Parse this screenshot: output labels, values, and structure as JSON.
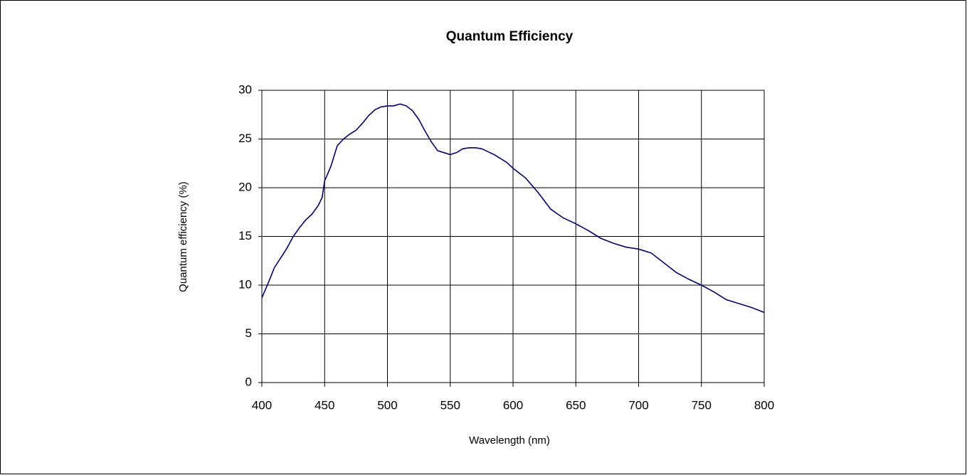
{
  "chart_data": {
    "type": "line",
    "title": "Quantum Efficiency",
    "x_label": "Wavelength (nm)",
    "y_label": "Quantum efficiency (%)",
    "x": [
      400,
      405,
      410,
      415,
      420,
      425,
      430,
      435,
      440,
      445,
      448,
      450,
      455,
      460,
      465,
      470,
      475,
      480,
      485,
      490,
      495,
      500,
      505,
      510,
      515,
      520,
      525,
      530,
      535,
      540,
      545,
      550,
      555,
      560,
      565,
      570,
      575,
      580,
      585,
      590,
      595,
      600,
      610,
      620,
      630,
      640,
      650,
      660,
      670,
      680,
      690,
      700,
      705,
      710,
      720,
      730,
      740,
      750,
      760,
      770,
      780,
      790,
      800
    ],
    "values": [
      8.7,
      10.2,
      11.8,
      12.8,
      13.8,
      15.0,
      15.9,
      16.7,
      17.3,
      18.2,
      19.0,
      20.7,
      22.2,
      24.3,
      25.0,
      25.5,
      25.9,
      26.6,
      27.4,
      28.0,
      28.3,
      28.4,
      28.4,
      28.6,
      28.4,
      27.9,
      27.0,
      25.8,
      24.7,
      23.8,
      23.6,
      23.4,
      23.6,
      24.0,
      24.1,
      24.1,
      24.0,
      23.7,
      23.4,
      23.0,
      22.6,
      22.0,
      21.0,
      19.5,
      17.8,
      16.9,
      16.3,
      15.6,
      14.8,
      14.3,
      13.9,
      13.7,
      13.5,
      13.3,
      12.3,
      11.3,
      10.6,
      10.0,
      9.3,
      8.5,
      8.1,
      7.7,
      7.2
    ],
    "color": "#000080",
    "xlim": [
      400,
      800
    ],
    "xticks": [
      400,
      450,
      500,
      550,
      600,
      650,
      700,
      750,
      800
    ],
    "ylim": [
      0,
      30
    ],
    "yticks": [
      0,
      5,
      10,
      15,
      20,
      25,
      30
    ],
    "grid": true
  }
}
